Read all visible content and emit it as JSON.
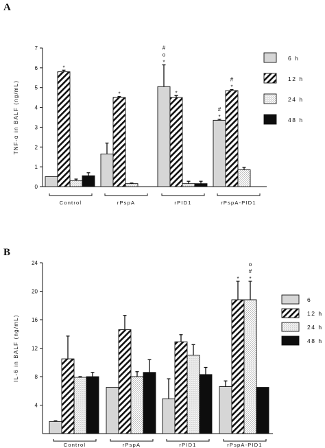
{
  "chart_data": [
    {
      "panel": "A",
      "type": "bar",
      "ylabel": "TNF-α in BALF (ng/mL)",
      "ylim": [
        0,
        7
      ],
      "yticks": [
        0,
        1,
        2,
        3,
        4,
        5,
        6,
        7
      ],
      "categories": [
        "Control",
        "rPspA",
        "rPID1",
        "rPspA-PID1"
      ],
      "series": [
        {
          "name": "6 h",
          "fill": "lightgray",
          "values": [
            0.5,
            1.65,
            5.05,
            3.35
          ],
          "errors": [
            0,
            0.55,
            1.1,
            0.05
          ]
        },
        {
          "name": "12 h",
          "fill": "hatch",
          "values": [
            5.8,
            4.5,
            4.5,
            4.85
          ],
          "errors": [
            0.08,
            0.05,
            0.1,
            0.05
          ]
        },
        {
          "name": "24 h",
          "fill": "dots",
          "values": [
            0.3,
            0.15,
            0.15,
            0.85
          ],
          "errors": [
            0.08,
            0.03,
            0.12,
            0.12
          ]
        },
        {
          "name": "48 h",
          "fill": "black",
          "values": [
            0.55,
            0.0,
            0.15,
            0.0
          ],
          "errors": [
            0.15,
            0,
            0.12,
            0
          ]
        }
      ],
      "annotations": [
        {
          "category": 0,
          "series": 1,
          "text": "*"
        },
        {
          "category": 1,
          "series": 1,
          "text": "*"
        },
        {
          "category": 2,
          "series": 0,
          "text": "*"
        },
        {
          "category": 2,
          "series": 0,
          "text": "o"
        },
        {
          "category": 2,
          "series": 0,
          "text": "#"
        },
        {
          "category": 2,
          "series": 1,
          "text": "*"
        },
        {
          "category": 3,
          "series": 0,
          "text": "*"
        },
        {
          "category": 3,
          "series": 0,
          "text": "#"
        },
        {
          "category": 3,
          "series": 1,
          "text": "*"
        },
        {
          "category": 3,
          "series": 1,
          "text": "#"
        }
      ],
      "legend_placement": "right"
    },
    {
      "panel": "B",
      "type": "bar",
      "ylabel": "IL-6 in BALF (ng/mL)",
      "ylim": [
        0,
        24
      ],
      "yticks": [
        4,
        8,
        12,
        16,
        20,
        24
      ],
      "categories": [
        "Control",
        "rPspA",
        "rPID1",
        "rPspA-PID1"
      ],
      "series": [
        {
          "name": "6",
          "fill": "lightgray",
          "values": [
            1.7,
            6.5,
            4.9,
            6.6
          ],
          "errors": [
            0.1,
            0,
            2.8,
            0.8
          ]
        },
        {
          "name": "12 h",
          "fill": "hatch",
          "values": [
            10.5,
            14.6,
            12.9,
            18.8
          ],
          "errors": [
            3.2,
            2.0,
            1.0,
            2.6
          ]
        },
        {
          "name": "24 h",
          "fill": "dots",
          "values": [
            7.9,
            8.0,
            11.0,
            18.8
          ],
          "errors": [
            0.1,
            0.7,
            1.5,
            2.6
          ]
        },
        {
          "name": "48 h",
          "fill": "black",
          "values": [
            8.0,
            8.6,
            8.3,
            6.5
          ],
          "errors": [
            0.6,
            1.8,
            1.0,
            0
          ]
        }
      ],
      "annotations": [
        {
          "category": 3,
          "series": 1,
          "text": "*"
        },
        {
          "category": 3,
          "series": 2,
          "text": "*"
        },
        {
          "category": 3,
          "series": 2,
          "text": "#"
        },
        {
          "category": 3,
          "series": 2,
          "text": "o"
        }
      ],
      "legend_placement": "right"
    }
  ]
}
